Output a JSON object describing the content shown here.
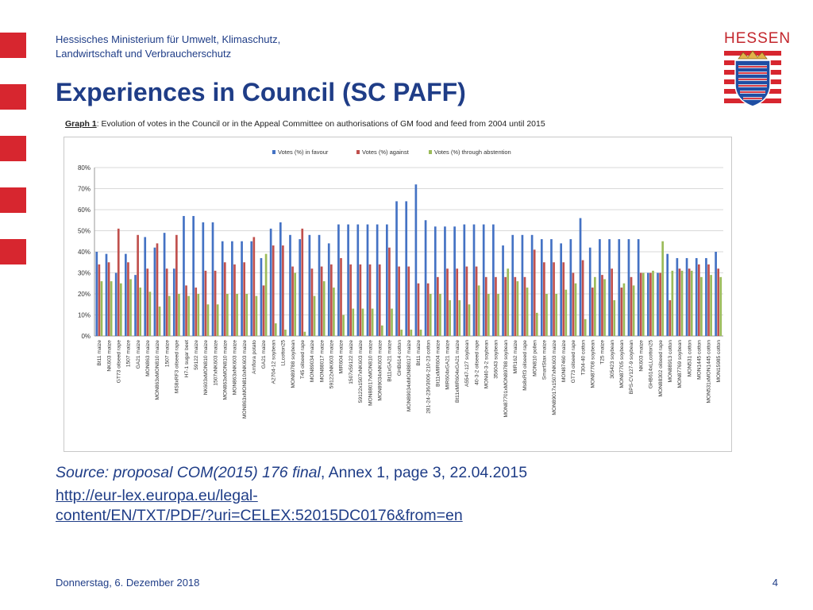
{
  "header": {
    "ministry_line1": "Hessisches Ministerium für Umwelt, Klimaschutz,",
    "ministry_line2": "Landwirtschaft und Verbraucherschutz",
    "logo_text": "HESSEN",
    "logo_icon": "hessen-coat-of-arms-icon",
    "accent_color": "#d7262f",
    "title_color": "#1f3d87"
  },
  "title": "Experiences in Council (SC PAFF)",
  "graph_caption": {
    "lead": "Graph 1",
    "text": ": Evolution of votes in the Council or in the Appeal Committee on authorisations of GM food and feed from 2004 until 2015"
  },
  "chart_data": {
    "type": "bar",
    "title": "",
    "xlabel": "",
    "ylabel": "",
    "ylim": [
      0,
      80
    ],
    "yticks": [
      "0%",
      "10%",
      "20%",
      "30%",
      "40%",
      "50%",
      "60%",
      "70%",
      "80%"
    ],
    "grid": true,
    "legend_position": "top",
    "categories": [
      "Bt11 maize",
      "NK603 maize",
      "GT73 oilseed rape",
      "1507 maize",
      "GA21 maize",
      "MON863 maize",
      "MON863xMON810 maize",
      "1507 maize",
      "MS8xRF3 oilseed rape",
      "H7-1 sugar beet",
      "59122 maize",
      "NK603xMON810 maize",
      "1507xNK603 maize",
      "MON863xMON810 maize",
      "MON863xNK603 maize",
      "MON863xMON810xNK603 maize",
      "Amflora potato",
      "GA21 maize",
      "A2704-12 soybean",
      "LLcotton25",
      "MON89788 soybean",
      "T45 oilseed rape",
      "MON89034 maize",
      "MON88017 maize",
      "59122xNK603 maize",
      "MIR604 maize",
      "1507x59122 maize",
      "59122x1507xNK603 maize",
      "MON88017xMON810 maize",
      "MON89034xNK603 maize",
      "Bt11xGA21 maize",
      "GHB614 cotton",
      "MON89034xMON88017 maize",
      "Bt11 maize",
      "281-24-236/3006-210-23 cotton",
      "Bt11xMIR604 maize",
      "MIR604xGA21 maize",
      "Bt11xMIR604xGA21 maize",
      "A5547-127 soybean",
      "40-3-2 oilseed rape",
      "MON40-3-2 soybean",
      "356043 soybean",
      "MON87701xMON89788 soybean",
      "MIR162 maize",
      "Ms8xRf3 oilseed rape",
      "MON810 pollen",
      "SmartStax maize",
      "MON89017x1507xNK603 maize",
      "MON87460 maize",
      "GT73 oilseed rape",
      "T304-40 cotton",
      "MON87708 soybean",
      "T25 maize",
      "305423 soybean",
      "MON87705 soybean",
      "BPS-CV127-9 soybean",
      "NK603 maize",
      "GHB614xLLcotton25",
      "MON88302 oilseed rape",
      "MON88913 cotton",
      "MON87769 soybean",
      "MON531 cotton",
      "MON1445 cotton",
      "MON531xMON1445 cotton",
      "MON15985 cotton"
    ],
    "series": [
      {
        "name": "Votes (%) in favour",
        "color": "#4472c4",
        "values": [
          40,
          39,
          30,
          39,
          29,
          47,
          42,
          49,
          32,
          57,
          57,
          54,
          54,
          45,
          45,
          45,
          45,
          37,
          51,
          54,
          48,
          46,
          48,
          48,
          44,
          53,
          53,
          53,
          53,
          53,
          53,
          64,
          64,
          72,
          55,
          52,
          52,
          52,
          53,
          53,
          53,
          53,
          43,
          48,
          48,
          48,
          46,
          46,
          44,
          46,
          56,
          42,
          46,
          46,
          46,
          46,
          46,
          30,
          30,
          39,
          37,
          37,
          37,
          37,
          40
        ]
      },
      {
        "name": "Votes (%) against",
        "color": "#c0504d",
        "values": [
          34,
          35,
          51,
          35,
          48,
          32,
          44,
          32,
          48,
          24,
          23,
          31,
          31,
          35,
          34,
          35,
          47,
          24,
          43,
          43,
          33,
          51,
          32,
          33,
          34,
          37,
          34,
          34,
          34,
          34,
          42,
          33,
          33,
          25,
          25,
          28,
          32,
          32,
          33,
          33,
          28,
          28,
          28,
          28,
          28,
          41,
          35,
          35,
          35,
          30,
          36,
          23,
          29,
          32,
          23,
          28,
          30,
          30,
          30,
          17,
          32,
          32,
          34,
          34,
          32
        ]
      },
      {
        "name": "Votes (%) through abstention",
        "color": "#9bbb59",
        "values": [
          26,
          26,
          25,
          27,
          23,
          21,
          14,
          19,
          20,
          19,
          20,
          15,
          15,
          20,
          20,
          20,
          19,
          39,
          6,
          3,
          30,
          2,
          19,
          26,
          23,
          10,
          13,
          13,
          13,
          5,
          13,
          3,
          3,
          3,
          20,
          20,
          17,
          17,
          15,
          24,
          20,
          20,
          32,
          26,
          23,
          11,
          20,
          20,
          22,
          25,
          8,
          28,
          27,
          17,
          25,
          24,
          30,
          31,
          45,
          31,
          31,
          31,
          28,
          29,
          28
        ]
      }
    ]
  },
  "source": {
    "prefix": "Source: proposal COM(2015) 176 final",
    "rest": ", Annex 1, page 3, 22.04.2015",
    "link_line1": "http://eur-lex.europa.eu/legal-",
    "link_line2": "content/EN/TXT/PDF/?uri=CELEX:52015DC0176&from=en"
  },
  "footer": {
    "date": "Donnerstag, 6. Dezember 2018",
    "page": "4"
  }
}
